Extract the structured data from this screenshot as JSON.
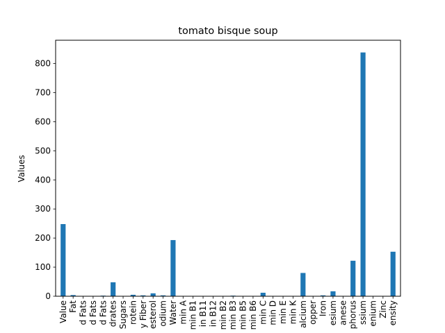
{
  "chart_data": {
    "type": "bar",
    "title": "tomato bisque soup",
    "xlabel": "",
    "ylabel": "Values",
    "ylim": [
      0,
      880
    ],
    "yticks": [
      0,
      100,
      200,
      300,
      400,
      500,
      600,
      700,
      800
    ],
    "grid": false,
    "bar_color": "#1f77b4",
    "categories": [
      "Value",
      "Fat",
      "d Fats",
      "d Fats",
      "d Fats",
      "drates",
      "Sugars",
      "rotein",
      "y Fiber",
      "esterol",
      "odium",
      "Water",
      "min A",
      "min B1",
      "in B11",
      "in B12",
      "min B2",
      "min B3",
      "min B5",
      "min B6",
      "min C",
      "min D",
      "min E",
      "min K",
      "alcium",
      "opper",
      "Iron",
      "esium",
      "anese",
      "phorus",
      "ssium",
      "enium",
      "Zinc",
      "ensity"
    ],
    "values": [
      248,
      4,
      0.5,
      0.5,
      2,
      48,
      0.5,
      5,
      3,
      10,
      3,
      193,
      0.5,
      0.5,
      0.5,
      0.5,
      0.5,
      2,
      0.5,
      0.5,
      12,
      0.5,
      0.5,
      0.5,
      80,
      0.5,
      3,
      17,
      0.5,
      122,
      838,
      0.5,
      0.5,
      153
    ]
  }
}
